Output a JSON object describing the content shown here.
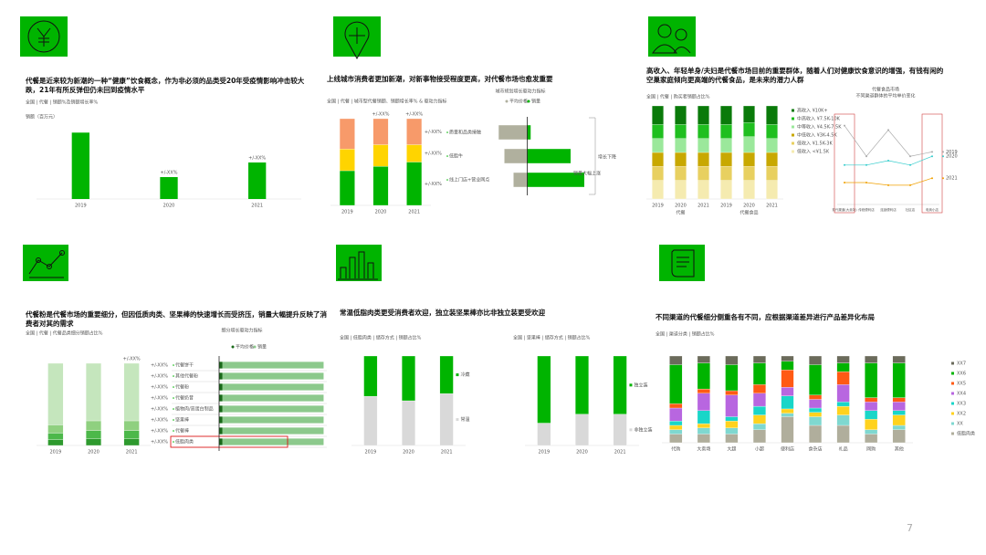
{
  "page_number": "7",
  "panels": [
    {
      "title": "代餐是近来较为新潮的一种“健康”饮食概念，作为非必须的品类受20年受疫情影响冲击较大跌，21年有所反弹但仍未回到疫情水平"
    },
    {
      "title": "上线城市消费者更加新潮，对新事物接受程度更高，对代餐市场也愈发重要"
    },
    {
      "title": "高收入、年轻单身/夫妇是代餐市场目前的重要群体，随着人们对健康饮食意识的增强，有钱有闲的空巢家庭倾向更高端的代餐食品，是未来的潜力人群"
    },
    {
      "title": "代餐粉是代餐市场的重要细分，但因低质肉类、坚果棒的快速增长而受挤压，销量大幅提升反映了消费者对其的需求"
    },
    {
      "title": "常温低脂肉类更受消费者欢迎，独立装坚果棒亦比非独立装更受欢迎"
    },
    {
      "title": "不同渠道的代餐细分侧重各有不同，应根据渠道差异进行产品差异化布局"
    }
  ],
  "chart_data": [
    {
      "type": "bar",
      "subtitle": "全国 | 代餐 | 销额%及销额增长率%",
      "ylabel": "销额（百万元）",
      "categories": [
        "2019",
        "2020",
        "2021"
      ],
      "values": [
        100,
        33,
        55
      ],
      "color": "#00b400",
      "ylim": [
        0,
        110
      ],
      "bar_labels": [
        null,
        "+/-XX%",
        "+/-XX%"
      ]
    },
    {
      "type": "stacked",
      "subtitle": "全国 | 代餐 | 城市型代餐销额、销额增长率% & 驱动力指标",
      "categories": [
        "2019",
        "2020",
        "2021"
      ],
      "ylim": [
        0,
        100
      ],
      "bar_labels": [
        null,
        "+/-XX%",
        "+/-XX%"
      ],
      "series": [
        {
          "color": "#f79a6a",
          "values": [
            35,
            30,
            30
          ],
          "segment_labels": [
            null,
            null,
            "+/-XX%"
          ]
        },
        {
          "color": "#ffd400",
          "values": [
            25,
            25,
            20
          ],
          "segment_labels": [
            null,
            null,
            "+/-XX%"
          ]
        },
        {
          "color": "#00b400",
          "values": [
            40,
            45,
            50
          ],
          "segment_labels": [
            null,
            null,
            "+/-XX%"
          ]
        }
      ]
    },
    {
      "type": "hbar",
      "title": "城市规划增长驱动力指标",
      "xlim": [
        -30,
        50
      ],
      "categories": [
        "质量和品类接触",
        "低脂牛",
        "线上门店+营业网点"
      ],
      "annotations": [
        "增长下降",
        "销量大幅上涨"
      ],
      "series": [
        {
          "name": "平均价格",
          "color": "#b0b09e",
          "values": [
            -25,
            -20,
            -12
          ]
        },
        {
          "name": "销量",
          "color": "#00b400",
          "values": [
            3,
            38,
            50
          ]
        }
      ]
    },
    {
      "type": "stacked",
      "subtitle": "全国 | 代餐 | 购买者销额占比%",
      "categories": [
        "2019",
        "2020",
        "2021",
        "2019",
        "2020",
        "2021"
      ],
      "groups": [
        "代餐",
        "代餐食品"
      ],
      "ylim": [
        0,
        100
      ],
      "series": [
        {
          "name": "高收入 ¥10K+",
          "color": "#0a7a0a",
          "values": [
            20,
            20,
            20,
            20,
            18,
            20
          ]
        },
        {
          "name": "中高收入 ¥7.5K-10K",
          "color": "#1fbf1f",
          "values": [
            15,
            15,
            15,
            15,
            15,
            15
          ]
        },
        {
          "name": "中等收入 ¥4.5K-7.5K",
          "color": "#9be89b",
          "values": [
            15,
            15,
            15,
            15,
            17,
            15
          ]
        },
        {
          "name": "中低收入 ¥3K-4.5K",
          "color": "#c8a800",
          "values": [
            15,
            15,
            15,
            15,
            15,
            15
          ]
        },
        {
          "name": "低收入 ¥1.5K-3K",
          "color": "#e8d060",
          "values": [
            15,
            15,
            15,
            15,
            15,
            15
          ]
        },
        {
          "name": "低收入 <¥1.5K",
          "color": "#f5ebb0",
          "values": [
            20,
            20,
            20,
            20,
            20,
            20
          ]
        }
      ]
    },
    {
      "type": "line",
      "title": "代餐食品市场",
      "subtitle": "不同渠道群体的平均单价变化",
      "categories": [
        "现代渠道(大卖场)",
        "传统便利店",
        "连锁便利店",
        "社区店",
        "电商小店"
      ],
      "ylim": [
        0,
        100
      ],
      "highlight": [
        0,
        4
      ],
      "series": [
        {
          "name": "2019",
          "color": "#aaaaaa",
          "values": [
            90,
            55,
            85,
            55,
            60
          ]
        },
        {
          "name": "2020",
          "color": "#33cccc",
          "values": [
            45,
            45,
            50,
            45,
            55
          ]
        },
        {
          "name": "2021",
          "color": "#f0a000",
          "values": [
            25,
            25,
            22,
            22,
            30
          ]
        }
      ]
    },
    {
      "type": "stacked",
      "subtitle": "全国 | 代餐 | 代餐品类细分销额占比%",
      "categories": [
        "2019",
        "2020",
        "2021"
      ],
      "ylim": [
        0,
        100
      ],
      "bar_labels": [
        null,
        null,
        "+/-XX%"
      ],
      "series": [
        {
          "color": "#c5e6bd",
          "values": [
            75,
            70,
            70
          ]
        },
        {
          "color": "#8fd07f",
          "values": [
            10,
            12,
            12
          ]
        },
        {
          "color": "#4cb84a",
          "values": [
            8,
            10,
            10
          ]
        },
        {
          "color": "#2e9a2e",
          "values": [
            7,
            8,
            8
          ]
        }
      ]
    },
    {
      "type": "hbar",
      "title": "细分增长驱动力指标",
      "xlim": [
        0,
        100
      ],
      "highlight": 7,
      "categories": [
        "代餐饼干",
        "其他代餐粉",
        "代餐粉",
        "代餐奶昔",
        "植物肉/高蛋白制品",
        "坚果棒",
        "代餐棒",
        "低脂肉类"
      ],
      "row_labels": [
        "+/-XX%",
        "+/-XX%",
        "+/-XX%",
        "+/-XX%",
        "+/-XX%",
        "+/-XX%",
        "+/-XX%",
        "+/-XX%"
      ],
      "series": [
        {
          "name": "平均价格",
          "color": "#1a6a1a",
          "values": [
            3,
            3,
            3,
            3,
            3,
            3,
            3,
            3
          ]
        },
        {
          "name": "销量",
          "color": "#8cc98c",
          "values": [
            97,
            97,
            97,
            97,
            97,
            97,
            97,
            97
          ]
        }
      ]
    },
    {
      "type": "stacked",
      "subtitle": "全国 | 低脂肉类 | 储存方式 | 销额占比%",
      "categories": [
        "2019",
        "2020",
        "2021"
      ],
      "ylim": [
        0,
        100
      ],
      "series": [
        {
          "name": "冷藏",
          "color": "#00b400",
          "values": [
            45,
            50,
            42
          ]
        },
        {
          "name": "常温",
          "color": "#d9d9d9",
          "values": [
            55,
            50,
            58
          ]
        }
      ]
    },
    {
      "type": "stacked",
      "subtitle": "全国 | 坚果棒 | 储存方式 | 销额占比%",
      "categories": [
        "2019",
        "2020",
        "2021"
      ],
      "ylim": [
        0,
        100
      ],
      "series": [
        {
          "name": "独立装",
          "color": "#00b400",
          "values": [
            75,
            65,
            65
          ]
        },
        {
          "name": "非独立装",
          "color": "#d9d9d9",
          "values": [
            25,
            35,
            35
          ]
        }
      ]
    },
    {
      "type": "stacked",
      "subtitle": "全国 | 渠道分类 | 销额占比%",
      "categories": [
        "代购",
        "大卖场",
        "大超",
        "小超",
        "便利店",
        "食杂店",
        "礼品",
        "网购",
        "其他"
      ],
      "ylim": [
        0,
        100
      ],
      "series": [
        {
          "name": "XX7",
          "color": "#6b6b5b",
          "values": [
            10,
            8,
            10,
            8,
            6,
            10,
            8,
            8,
            8
          ]
        },
        {
          "name": "XX6",
          "color": "#00b400",
          "values": [
            45,
            30,
            30,
            25,
            10,
            35,
            10,
            40,
            40
          ]
        },
        {
          "name": "XX5",
          "color": "#ff5a14",
          "values": [
            5,
            5,
            5,
            10,
            20,
            5,
            15,
            5,
            5
          ]
        },
        {
          "name": "XX4",
          "color": "#b866e0",
          "values": [
            15,
            20,
            25,
            15,
            10,
            10,
            20,
            10,
            10
          ]
        },
        {
          "name": "XX3",
          "color": "#19d6c8",
          "values": [
            5,
            15,
            5,
            10,
            15,
            5,
            5,
            10,
            5
          ]
        },
        {
          "name": "XX2",
          "color": "#ffd21e",
          "values": [
            5,
            5,
            8,
            10,
            5,
            5,
            10,
            12,
            12
          ]
        },
        {
          "name": "XX",
          "color": "#7fd8d0",
          "values": [
            5,
            7,
            7,
            7,
            4,
            10,
            12,
            5,
            5
          ]
        },
        {
          "name": "低脂肉类",
          "color": "#b0ae9c",
          "values": [
            10,
            10,
            10,
            15,
            30,
            20,
            20,
            10,
            15
          ]
        }
      ]
    }
  ]
}
